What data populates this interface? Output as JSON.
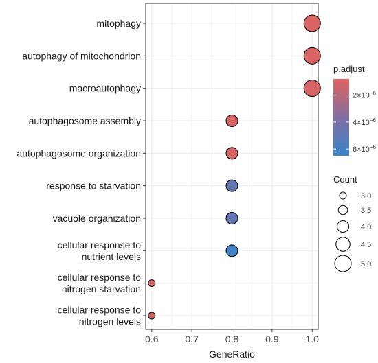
{
  "chart_data": {
    "type": "scatter",
    "xlabel": "GeneRatio",
    "ylabel": "",
    "xlim": [
      0.585,
      1.015
    ],
    "x_ticks": [
      "0.6",
      "0.7",
      "0.8",
      "0.9",
      "1.0"
    ],
    "grid": true,
    "categories": [
      "mitophagy",
      "autophagy of mitochondrion",
      "macroautophagy",
      "autophagosome assembly",
      "autophagosome organization",
      "response to starvation",
      "vacuole organization",
      "cellular response to\nnutrient levels",
      "cellular response to\nnitrogen starvation",
      "cellular response to\nnitrogen levels"
    ],
    "points": [
      {
        "term": "mitophagy",
        "gene_ratio": 1.0,
        "count": 5,
        "p_adjust": 1e-06
      },
      {
        "term": "autophagy of mitochondrion",
        "gene_ratio": 1.0,
        "count": 5,
        "p_adjust": 1e-06
      },
      {
        "term": "macroautophagy",
        "gene_ratio": 1.0,
        "count": 5,
        "p_adjust": 1.1e-06
      },
      {
        "term": "autophagosome assembly",
        "gene_ratio": 0.8,
        "count": 4,
        "p_adjust": 1.1e-06
      },
      {
        "term": "autophagosome organization",
        "gene_ratio": 0.8,
        "count": 4,
        "p_adjust": 1.1e-06
      },
      {
        "term": "response to starvation",
        "gene_ratio": 0.8,
        "count": 4,
        "p_adjust": 4.8e-06
      },
      {
        "term": "vacuole organization",
        "gene_ratio": 0.8,
        "count": 4,
        "p_adjust": 4.8e-06
      },
      {
        "term": "cellular response to nutrient levels",
        "gene_ratio": 0.8,
        "count": 4,
        "p_adjust": 6.2e-06
      },
      {
        "term": "cellular response to nitrogen starvation",
        "gene_ratio": 0.6,
        "count": 3,
        "p_adjust": 1e-06
      },
      {
        "term": "cellular response to nitrogen levels",
        "gene_ratio": 0.6,
        "count": 3,
        "p_adjust": 1e-06
      }
    ],
    "color_legend": {
      "title": "p.adjust",
      "range": [
        8e-07,
        6.5e-06
      ],
      "ticks": [
        {
          "value": 2e-06,
          "label_base": "2×10",
          "label_exp": "−6"
        },
        {
          "value": 4e-06,
          "label_base": "4×10",
          "label_exp": "−6"
        },
        {
          "value": 6e-06,
          "label_base": "6×10",
          "label_exp": "−6"
        }
      ],
      "low_color": "#e0635e",
      "mid_color": "#7a6fa6",
      "high_color": "#3a86c9"
    },
    "size_legend": {
      "title": "Count",
      "values": [
        3,
        3.5,
        4,
        4.5,
        5
      ],
      "labels": [
        "3.0",
        "3.5",
        "4.0",
        "4.5",
        "5.0"
      ]
    },
    "colors": {
      "grid": "#ebebeb",
      "panel_border": "#333333",
      "point_stroke": "#000000"
    }
  }
}
